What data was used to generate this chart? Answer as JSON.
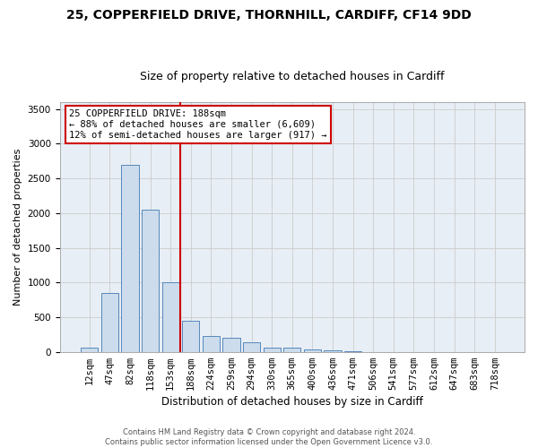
{
  "title_line1": "25, COPPERFIELD DRIVE, THORNHILL, CARDIFF, CF14 9DD",
  "title_line2": "Size of property relative to detached houses in Cardiff",
  "xlabel": "Distribution of detached houses by size in Cardiff",
  "ylabel": "Number of detached properties",
  "categories": [
    "12sqm",
    "47sqm",
    "82sqm",
    "118sqm",
    "153sqm",
    "188sqm",
    "224sqm",
    "259sqm",
    "294sqm",
    "330sqm",
    "365sqm",
    "400sqm",
    "436sqm",
    "471sqm",
    "506sqm",
    "541sqm",
    "577sqm",
    "612sqm",
    "647sqm",
    "683sqm",
    "718sqm"
  ],
  "values": [
    65,
    850,
    2700,
    2050,
    1010,
    450,
    230,
    200,
    135,
    60,
    55,
    30,
    25,
    5,
    0,
    0,
    0,
    0,
    0,
    0,
    0
  ],
  "bar_color": "#ccdcec",
  "bar_edge_color": "#5588bb",
  "vline_color": "#cc0000",
  "annotation_text": "25 COPPERFIELD DRIVE: 188sqm\n← 88% of detached houses are smaller (6,609)\n12% of semi-detached houses are larger (917) →",
  "annotation_box_color": "#ffffff",
  "annotation_box_edge": "#cc0000",
  "ylim": [
    0,
    3600
  ],
  "yticks": [
    0,
    500,
    1000,
    1500,
    2000,
    2500,
    3000,
    3500
  ],
  "grid_color": "#cccccc",
  "plot_bg_color": "#e8eef5",
  "fig_bg_color": "#ffffff",
  "footer_text": "Contains HM Land Registry data © Crown copyright and database right 2024.\nContains public sector information licensed under the Open Government Licence v3.0.",
  "title1_fontsize": 10,
  "title2_fontsize": 9,
  "xlabel_fontsize": 8.5,
  "ylabel_fontsize": 8,
  "tick_fontsize": 7.5,
  "ann_fontsize": 7.5,
  "footer_fontsize": 6
}
